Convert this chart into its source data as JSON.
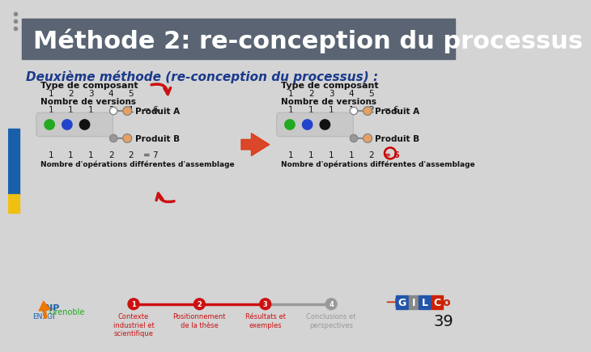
{
  "title": "Méthode 2: re-conception du processus",
  "subtitle": "Deuxième méthode (re-conception du processus) :",
  "title_bg": "#5a6472",
  "title_fg": "#ffffff",
  "subtitle_fg": "#1a3a8c",
  "bg_color": "#d4d4d4",
  "left_strip_color": "#1a5faa",
  "left_strip2_color": "#f0c010",
  "page_num": "39",
  "nav_labels": [
    "Contexte\nindustriel et\nscientifique",
    "Positionnement\nde la thèse",
    "Résultats et\nexemples",
    "Conclusions et\nperspectives"
  ],
  "left_diagram": {
    "label": "Type de composant",
    "components": [
      "1",
      "2",
      "3",
      "4",
      "5"
    ],
    "versions_label": "Nombre de versions",
    "versions": [
      "1",
      "1",
      "1",
      "2",
      "1"
    ],
    "total_versions": "= 6",
    "prodA_label": "Produit A",
    "prodB_label": "Produit B",
    "ops_label": "Nombre d'opérations différentes d'assemblage",
    "ops_vals": [
      "1",
      "1",
      "1",
      "2",
      "2"
    ],
    "ops_total": "= 7"
  },
  "right_diagram": {
    "label": "Type de composant",
    "components": [
      "1",
      "2",
      "3",
      "4",
      "5"
    ],
    "versions_label": "Nombre de versions",
    "versions": [
      "1",
      "1",
      "1",
      "1",
      "2"
    ],
    "total_versions": "= 6",
    "prodA_label": "Produit A",
    "prodB_label": "Produit B",
    "ops_label": "Nombre d'opérations différentes d'assemblage",
    "ops_vals": [
      "1",
      "1",
      "1",
      "1",
      "2"
    ],
    "ops_total": "= 6"
  },
  "dot_colors": {
    "green": "#22aa22",
    "blue": "#2244cc",
    "black": "#111111",
    "white": "#ffffff",
    "orange": "#e8a060",
    "gray": "#999999"
  },
  "red_color": "#cc1111",
  "gray_color": "#999999"
}
